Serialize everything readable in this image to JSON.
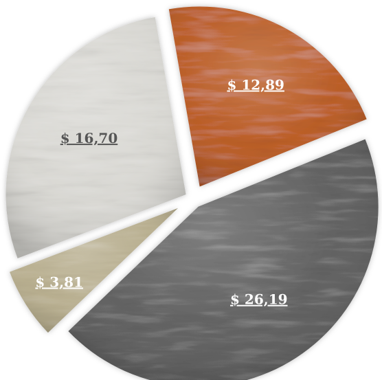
{
  "chart_data": {
    "type": "pie",
    "exploded": true,
    "currency_prefix": "$",
    "slices": [
      {
        "label": "$ 26,19",
        "value": 26.19,
        "color": "#5b5b5b",
        "label_color": "#ffffff",
        "texture": "brushed-dark-steel"
      },
      {
        "label": "$ 3,81",
        "value": 3.81,
        "color": "#b5ab8a",
        "label_color": "#ffffff",
        "texture": "brushed-brass"
      },
      {
        "label": "$ 16,70",
        "value": 16.7,
        "color": "#d7d6d1",
        "label_color": "#555555",
        "texture": "brushed-silver"
      },
      {
        "label": "$ 12,89",
        "value": 12.89,
        "color": "#b8561e",
        "label_color": "#ffffff",
        "texture": "brushed-copper"
      }
    ]
  }
}
